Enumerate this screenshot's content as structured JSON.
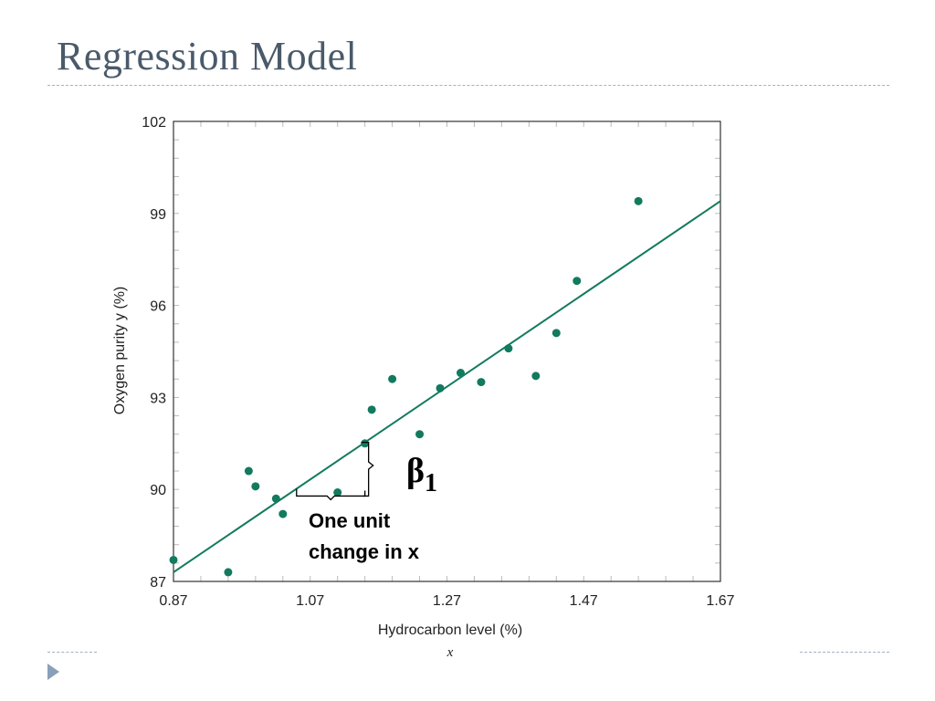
{
  "slide": {
    "title": "Regression Model"
  },
  "colors": {
    "title": "#4a5a6a",
    "rule": "#9fb3c6",
    "bullet": "#8aa0b8",
    "series": "#127a5e",
    "axis": "#333333",
    "tick": "#bbbbbb"
  },
  "chart_data": {
    "type": "scatter",
    "xlabel": "Hydrocarbon level (%)",
    "xsymbol": "x",
    "ylabel": "Oxygen purity y (%)",
    "xlim": [
      0.87,
      1.67
    ],
    "ylim": [
      87,
      102
    ],
    "xticks": [
      0.87,
      1.07,
      1.27,
      1.47,
      1.67
    ],
    "xtick_labels": [
      "0.87",
      "1.07",
      "1.27",
      "1.47",
      "1.67"
    ],
    "yticks": [
      87,
      90,
      93,
      96,
      99,
      102
    ],
    "ytick_labels": [
      "87",
      "90",
      "93",
      "96",
      "99",
      "102"
    ],
    "grid": false,
    "points": [
      {
        "x": 0.87,
        "y": 87.7
      },
      {
        "x": 0.95,
        "y": 87.3
      },
      {
        "x": 0.98,
        "y": 90.6
      },
      {
        "x": 0.99,
        "y": 90.1
      },
      {
        "x": 1.02,
        "y": 89.7
      },
      {
        "x": 1.03,
        "y": 89.2
      },
      {
        "x": 1.11,
        "y": 89.9
      },
      {
        "x": 1.15,
        "y": 91.5
      },
      {
        "x": 1.16,
        "y": 92.6
      },
      {
        "x": 1.19,
        "y": 93.6
      },
      {
        "x": 1.23,
        "y": 91.8
      },
      {
        "x": 1.26,
        "y": 93.3
      },
      {
        "x": 1.29,
        "y": 93.8
      },
      {
        "x": 1.32,
        "y": 93.5
      },
      {
        "x": 1.36,
        "y": 94.6
      },
      {
        "x": 1.4,
        "y": 93.7
      },
      {
        "x": 1.43,
        "y": 95.1
      },
      {
        "x": 1.46,
        "y": 96.8
      },
      {
        "x": 1.55,
        "y": 99.4
      }
    ],
    "regression_line": {
      "x": [
        0.87,
        1.67
      ],
      "y": [
        87.3,
        99.4
      ]
    },
    "annotations": {
      "beta_symbol": "β",
      "beta_subscript": "1",
      "unit_line1": "One unit",
      "unit_line2": "change in x"
    }
  }
}
